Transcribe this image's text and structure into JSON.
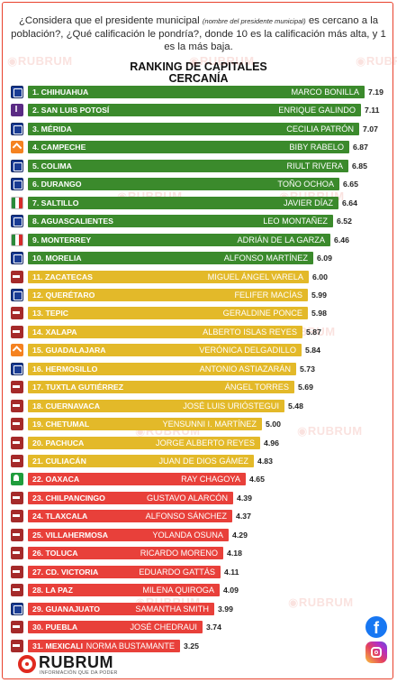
{
  "question": {
    "part1": "¿Considera que el presidente municipal",
    "note": "(nombre del presidente municipal)",
    "part2": "es cercano a la población?, ¿Qué calificación le pondría?, donde 10 es la calificación más alta, y 1 es la más baja."
  },
  "watermark": "RUBRUM",
  "brand": {
    "name": "RUBRUM",
    "tagline": "INFORMACIÓN QUE DA PODER"
  },
  "social": {
    "facebook": "facebook-icon",
    "instagram": "instagram-icon"
  },
  "colors": {
    "green": "#3b8a2c",
    "yellow": "#e3b929",
    "red": "#e8403a",
    "frame": "#e8412c"
  },
  "chart_data": {
    "type": "bar",
    "orientation": "horizontal",
    "title": "RANKING DE CAPITALES",
    "subtitle": "CERCANÍA",
    "xlim": [
      0,
      10
    ],
    "categories": [
      "1. CHIHUAHUA",
      "2. SAN LUIS POTOSÍ",
      "3. MÉRIDA",
      "4. CAMPECHE",
      "5. COLIMA",
      "6. DURANGO",
      "7. SALTILLO",
      "8. AGUASCALIENTES",
      "9. MONTERREY",
      "10. MORELIA",
      "11. ZACATECAS",
      "12. QUERÉTARO",
      "13. TEPIC",
      "14. XALAPA",
      "15. GUADALAJARA",
      "16. HERMOSILLO",
      "17. TUXTLA GUTIÉRREZ",
      "18. CUERNAVACA",
      "19. CHETUMAL",
      "20. PACHUCA",
      "21. CULIACÁN",
      "22. OAXACA",
      "23. CHILPANCINGO",
      "24. TLAXCALA",
      "25. VILLAHERMOSA",
      "26. TOLUCA",
      "27. CD. VICTORIA",
      "28. LA PAZ",
      "29. GUANAJUATO",
      "30. PUEBLA",
      "31. MEXICALI"
    ],
    "names": [
      "MARCO BONILLA",
      "ENRIQUE GALINDO",
      "CECILIA PATRÓN",
      "BIBY RABELO",
      "RIULT RIVERA",
      "TOÑO OCHOA",
      "JAVIER DÍAZ",
      "LEO MONTAÑEZ",
      "ADRIÁN DE LA GARZA",
      "ALFONSO MARTÍNEZ",
      "MIGUEL ÁNGEL VARELA",
      "FELIFER MACÍAS",
      "GERALDINE PONCE",
      "ALBERTO ISLAS REYES",
      "VERÓNICA DELGADILLO",
      "ANTONIO ASTIAZARÁN",
      "ÁNGEL TORRES",
      "JOSÉ LUIS URIÓSTEGUI",
      "YENSUNNI I. MARTÍNEZ",
      "JORGE ALBERTO REYES",
      "JUAN DE DIOS GÁMEZ",
      "RAY CHAGOYA",
      "GUSTAVO ALARCÓN",
      "ALFONSO SÁNCHEZ",
      "YOLANDA OSUNA",
      "RICARDO MORENO",
      "EDUARDO GATTÁS",
      "MILENA QUIROGA",
      "SAMANTHA SMITH",
      "JOSÉ CHEDRAUI",
      "NORMA BUSTAMANTE"
    ],
    "values": [
      7.19,
      7.11,
      7.07,
      6.87,
      6.85,
      6.65,
      6.64,
      6.52,
      6.46,
      6.09,
      6.0,
      5.99,
      5.98,
      5.87,
      5.84,
      5.73,
      5.69,
      5.48,
      5.0,
      4.96,
      4.83,
      4.65,
      4.39,
      4.37,
      4.29,
      4.18,
      4.11,
      4.09,
      3.99,
      3.74,
      3.25
    ],
    "labels": [
      "7.19",
      "7.11",
      "7.07",
      "6.87",
      "6.85",
      "6.65",
      "6.64",
      "6.52",
      "6.46",
      "6.09",
      "6.00",
      "5.99",
      "5.98",
      "5.87",
      "5.84",
      "5.73",
      "5.69",
      "5.48",
      "5.00",
      "4.96",
      "4.83",
      "4.65",
      "4.39",
      "4.37",
      "4.29",
      "4.18",
      "4.11",
      "4.09",
      "3.99",
      "3.74",
      "3.25"
    ],
    "parties": [
      "pan",
      "ind",
      "pan",
      "mc",
      "pan",
      "pan",
      "pri",
      "pan",
      "pri",
      "pan",
      "mor",
      "pan",
      "mor",
      "mor",
      "mc",
      "pan",
      "mor",
      "mor",
      "mor",
      "mor",
      "mor",
      "pvem",
      "mor",
      "mor",
      "mor",
      "mor",
      "mor",
      "mor",
      "pan",
      "mor",
      "mor"
    ],
    "bar_colors": [
      "green",
      "green",
      "green",
      "green",
      "green",
      "green",
      "green",
      "green",
      "green",
      "green",
      "yellow",
      "yellow",
      "yellow",
      "yellow",
      "yellow",
      "yellow",
      "yellow",
      "yellow",
      "yellow",
      "yellow",
      "yellow",
      "red",
      "red",
      "red",
      "red",
      "red",
      "red",
      "red",
      "red",
      "red",
      "red"
    ],
    "grid": false,
    "legend": "none"
  }
}
